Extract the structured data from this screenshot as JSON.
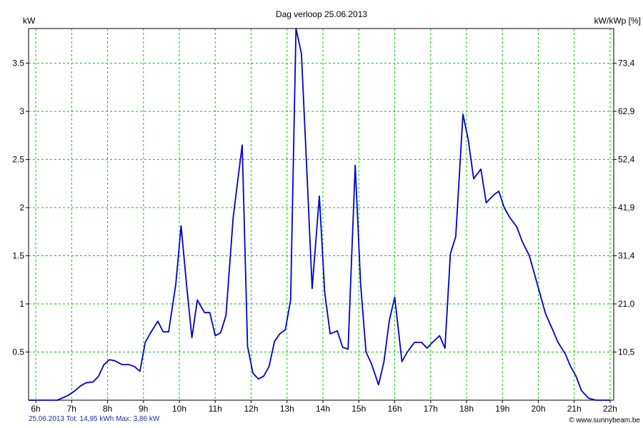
{
  "chart_data": {
    "type": "line",
    "title": "Dag  verloop 25.06.2013",
    "ylabel": "kW",
    "ylabel_right": "kW/kWp [%]",
    "ylim": [
      0,
      3.86
    ],
    "xlim": [
      5.8,
      22.1
    ],
    "grid": true,
    "x_ticks": [
      6,
      7,
      8,
      9,
      10,
      11,
      12,
      13,
      14,
      15,
      16,
      17,
      18,
      19,
      20,
      21,
      22
    ],
    "x_tick_labels": [
      "6h",
      "7h",
      "8h",
      "9h",
      "10h",
      "11h",
      "12h",
      "13h",
      "14h",
      "15h",
      "16h",
      "17h",
      "18h",
      "19h",
      "20h",
      "21h",
      "22h"
    ],
    "y_ticks": [
      0.5,
      1,
      1.5,
      2,
      2.5,
      3,
      3.5
    ],
    "y_tick_labels": [
      "0.5",
      "1",
      "1.5",
      "2",
      "2.5",
      "3",
      "3.5"
    ],
    "y_right_tick_labels": [
      "10,5",
      "21,0",
      "31,4",
      "41,9",
      "52,4",
      "62,9",
      "73,4"
    ],
    "line_color": "#0000cc",
    "grid_color": "#00cc00",
    "series": [
      {
        "x": [
          5.8,
          6.6,
          6.9,
          7.1,
          7.25,
          7.4,
          7.6,
          7.75,
          7.9,
          8.05,
          8.2,
          8.4,
          8.6,
          8.75,
          8.9,
          9.05,
          9.2,
          9.4,
          9.55,
          9.7,
          9.9,
          10.05,
          10.2,
          10.35,
          10.5,
          10.7,
          10.85,
          11.0,
          11.15,
          11.3,
          11.5,
          11.75,
          11.9,
          12.05,
          12.2,
          12.35,
          12.5,
          12.65,
          12.8,
          12.95,
          13.1,
          13.25,
          13.4,
          13.55,
          13.7,
          13.9,
          14.05,
          14.2,
          14.4,
          14.55,
          14.7,
          14.9,
          15.05,
          15.2,
          15.35,
          15.55,
          15.7,
          15.85,
          16.0,
          16.2,
          16.35,
          16.55,
          16.75,
          16.9,
          17.05,
          17.25,
          17.4,
          17.55,
          17.7,
          17.9,
          18.05,
          18.2,
          18.4,
          18.55,
          18.75,
          18.9,
          19.05,
          19.2,
          19.4,
          19.55,
          19.75,
          19.9,
          20.05,
          20.2,
          20.4,
          20.55,
          20.75,
          20.9,
          21.05,
          21.2,
          21.4,
          21.6,
          21.8,
          22.0
        ],
        "y": [
          0.0,
          0.0,
          0.05,
          0.1,
          0.15,
          0.18,
          0.19,
          0.25,
          0.37,
          0.42,
          0.41,
          0.37,
          0.37,
          0.35,
          0.3,
          0.6,
          0.7,
          0.82,
          0.71,
          0.71,
          1.2,
          1.81,
          1.2,
          0.65,
          1.04,
          0.91,
          0.91,
          0.67,
          0.7,
          0.88,
          1.9,
          2.65,
          0.56,
          0.28,
          0.22,
          0.25,
          0.35,
          0.61,
          0.69,
          0.73,
          1.04,
          3.86,
          3.6,
          2.4,
          1.16,
          2.12,
          1.12,
          0.69,
          0.72,
          0.55,
          0.53,
          2.44,
          1.2,
          0.5,
          0.38,
          0.16,
          0.4,
          0.83,
          1.07,
          0.4,
          0.5,
          0.6,
          0.6,
          0.54,
          0.6,
          0.67,
          0.54,
          1.52,
          1.7,
          2.97,
          2.7,
          2.3,
          2.4,
          2.05,
          2.13,
          2.17,
          2.0,
          1.9,
          1.8,
          1.65,
          1.5,
          1.3,
          1.1,
          0.9,
          0.73,
          0.6,
          0.48,
          0.35,
          0.25,
          0.1,
          0.02,
          0.0,
          0.0,
          0.0
        ]
      }
    ]
  },
  "footer": {
    "summary": "25.06.2013 Tot: 14,95 kWh Max: 3,86 kW",
    "credit": "© www.sunnybeam.be"
  }
}
